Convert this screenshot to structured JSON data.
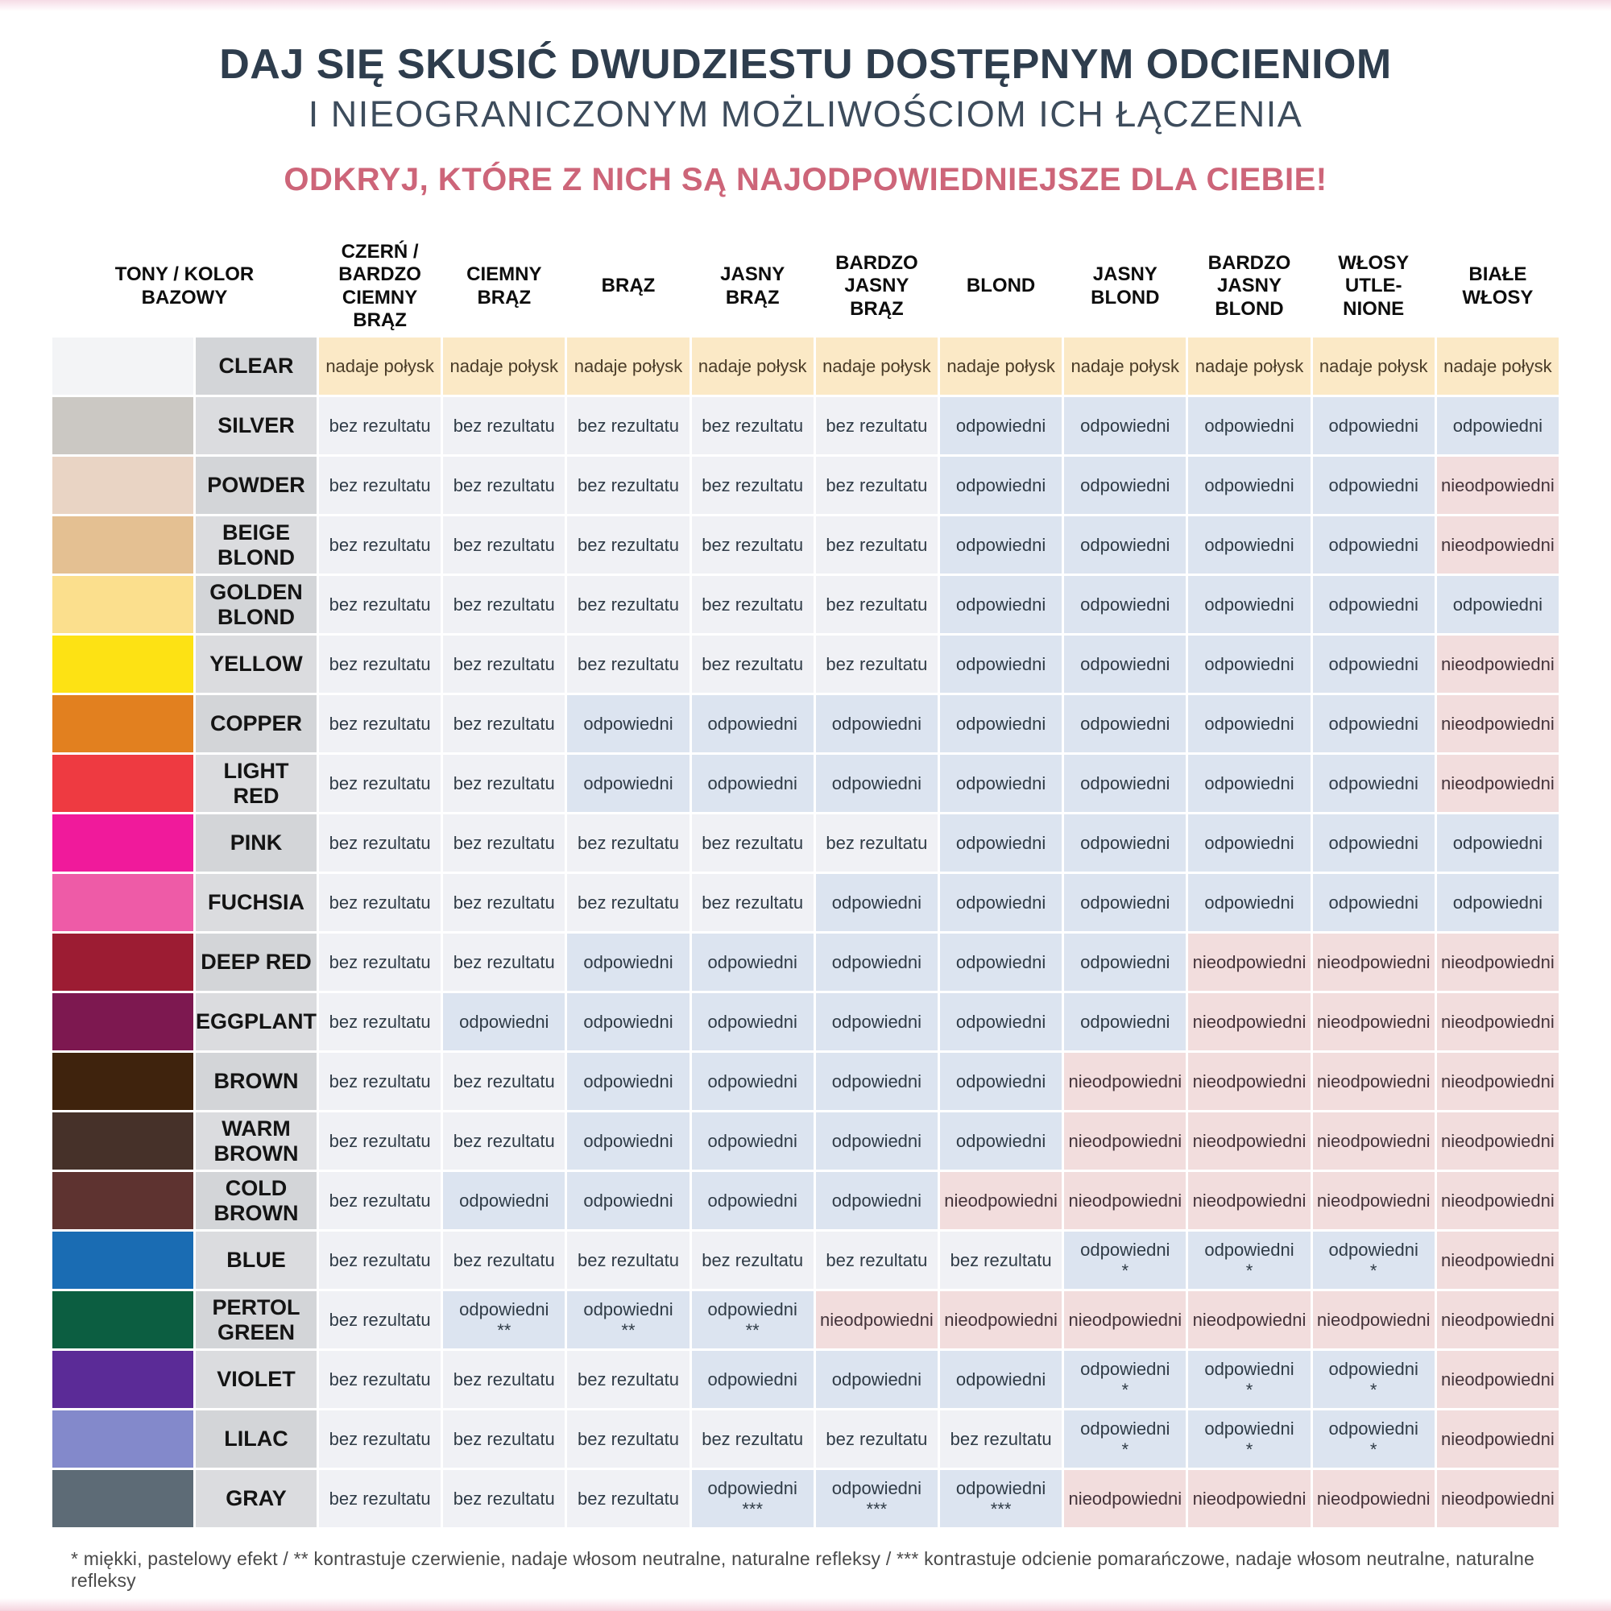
{
  "page": {
    "title": "DAJ SIĘ SKUSIĆ DWUDZIESTU DOSTĘPNYM ODCIENIOM",
    "subtitle": "I NIEOGRANICZONYM MOŻLIWOŚCIOM ICH ŁĄCZENIA",
    "tagline": "ODKRYJ, KTÓRE Z NICH SĄ NAJODPOWIEDNIEJSZE DLA CIEBIE!",
    "footnote": "* miękki, pastelowy efekt   /   ** kontrastuje czerwienie, nadaje włosom neutralne, naturalne refleksy   /   *** kontrastuje odcienie pomarańczowe, nadaje włosom neutralne, naturalne refleksy"
  },
  "colors": {
    "title_text": "#2e3d4d",
    "tagline_text": "#cd6579",
    "cell_shine_bg": "#fbe9c6",
    "cell_none_bg": "#f0f1f5",
    "cell_ok_bg": "#dce4f0",
    "cell_bad_bg": "#f2dddd",
    "label_bg_a": "#d3d5d8",
    "label_bg_b": "#dbdcdf"
  },
  "table": {
    "corner_header": "TONY / KOLOR\nBAZOWY",
    "columns": [
      "CZERŃ /\nBARDZO\nCIEMNY BRĄZ",
      "CIEMNY\nBRĄZ",
      "BRĄZ",
      "JASNY BRĄZ",
      "BARDZO\nJASNY BRĄZ",
      "BLOND",
      "JASNY\nBLOND",
      "BARDZO\nJASNY\nBLOND",
      "WŁOSY\nUTLE-\nNIONE",
      "BIAŁE\nWŁOSY"
    ],
    "legend": {
      "P": "nadaje połysk",
      "B": "bez rezultatu",
      "O": "odpowiedni",
      "N": "nieodpowiedni"
    },
    "rows": [
      {
        "tone": "CLEAR",
        "swatch": "#f3f4f6",
        "cells": [
          "P",
          "P",
          "P",
          "P",
          "P",
          "P",
          "P",
          "P",
          "P",
          "P"
        ]
      },
      {
        "tone": "SILVER",
        "swatch": "#cbc8c3",
        "cells": [
          "B",
          "B",
          "B",
          "B",
          "B",
          "O",
          "O",
          "O",
          "O",
          "O"
        ]
      },
      {
        "tone": "POWDER",
        "swatch": "#e9d4c4",
        "cells": [
          "B",
          "B",
          "B",
          "B",
          "B",
          "O",
          "O",
          "O",
          "O",
          "N"
        ]
      },
      {
        "tone": "BEIGE BLOND",
        "swatch": "#e4c092",
        "cells": [
          "B",
          "B",
          "B",
          "B",
          "B",
          "O",
          "O",
          "O",
          "O",
          "N"
        ]
      },
      {
        "tone": "GOLDEN BLOND",
        "swatch": "#fbdf8d",
        "cells": [
          "B",
          "B",
          "B",
          "B",
          "B",
          "O",
          "O",
          "O",
          "O",
          "O"
        ]
      },
      {
        "tone": "YELLOW",
        "swatch": "#fde214",
        "cells": [
          "B",
          "B",
          "B",
          "B",
          "B",
          "O",
          "O",
          "O",
          "O",
          "N"
        ]
      },
      {
        "tone": "COPPER",
        "swatch": "#e2801f",
        "cells": [
          "B",
          "B",
          "O",
          "O",
          "O",
          "O",
          "O",
          "O",
          "O",
          "N"
        ]
      },
      {
        "tone": "LIGHT RED",
        "swatch": "#ee3a41",
        "cells": [
          "B",
          "B",
          "O",
          "O",
          "O",
          "O",
          "O",
          "O",
          "O",
          "N"
        ]
      },
      {
        "tone": "PINK",
        "swatch": "#f01a9b",
        "cells": [
          "B",
          "B",
          "B",
          "B",
          "B",
          "O",
          "O",
          "O",
          "O",
          "O"
        ]
      },
      {
        "tone": "FUCHSIA",
        "swatch": "#ee5ba7",
        "cells": [
          "B",
          "B",
          "B",
          "B",
          "O",
          "O",
          "O",
          "O",
          "O",
          "O"
        ]
      },
      {
        "tone": "DEEP RED",
        "swatch": "#9c1c33",
        "cells": [
          "B",
          "B",
          "O",
          "O",
          "O",
          "O",
          "O",
          "N",
          "N",
          "N"
        ]
      },
      {
        "tone": "EGGPLANT",
        "swatch": "#7d1850",
        "cells": [
          "B",
          "O",
          "O",
          "O",
          "O",
          "O",
          "O",
          "N",
          "N",
          "N"
        ]
      },
      {
        "tone": "BROWN",
        "swatch": "#3f230d",
        "cells": [
          "B",
          "B",
          "O",
          "O",
          "O",
          "O",
          "N",
          "N",
          "N",
          "N"
        ]
      },
      {
        "tone": "WARM BROWN",
        "swatch": "#463129",
        "cells": [
          "B",
          "B",
          "O",
          "O",
          "O",
          "O",
          "N",
          "N",
          "N",
          "N"
        ]
      },
      {
        "tone": "COLD BROWN",
        "swatch": "#5e3330",
        "cells": [
          "B",
          "O",
          "O",
          "O",
          "O",
          "N",
          "N",
          "N",
          "N",
          "N"
        ]
      },
      {
        "tone": "BLUE",
        "swatch": "#1a6cb3",
        "cells": [
          "B",
          "B",
          "B",
          "B",
          "B",
          "B",
          "O*",
          "O*",
          "O*",
          "N"
        ]
      },
      {
        "tone": "PERTOL GREEN",
        "swatch": "#0c5e41",
        "cells": [
          "B",
          "O**",
          "O**",
          "O**",
          "N",
          "N",
          "N",
          "N",
          "N",
          "N"
        ]
      },
      {
        "tone": "VIOLET",
        "swatch": "#5b2b97",
        "cells": [
          "B",
          "B",
          "B",
          "O",
          "O",
          "O",
          "O*",
          "O*",
          "O*",
          "N"
        ]
      },
      {
        "tone": "LILAC",
        "swatch": "#8389cb",
        "cells": [
          "B",
          "B",
          "B",
          "B",
          "B",
          "B",
          "O*",
          "O*",
          "O*",
          "N"
        ]
      },
      {
        "tone": "GRAY",
        "swatch": "#5d6b76",
        "cells": [
          "B",
          "B",
          "B",
          "O***",
          "O***",
          "O***",
          "N",
          "N",
          "N",
          "N"
        ]
      }
    ]
  }
}
